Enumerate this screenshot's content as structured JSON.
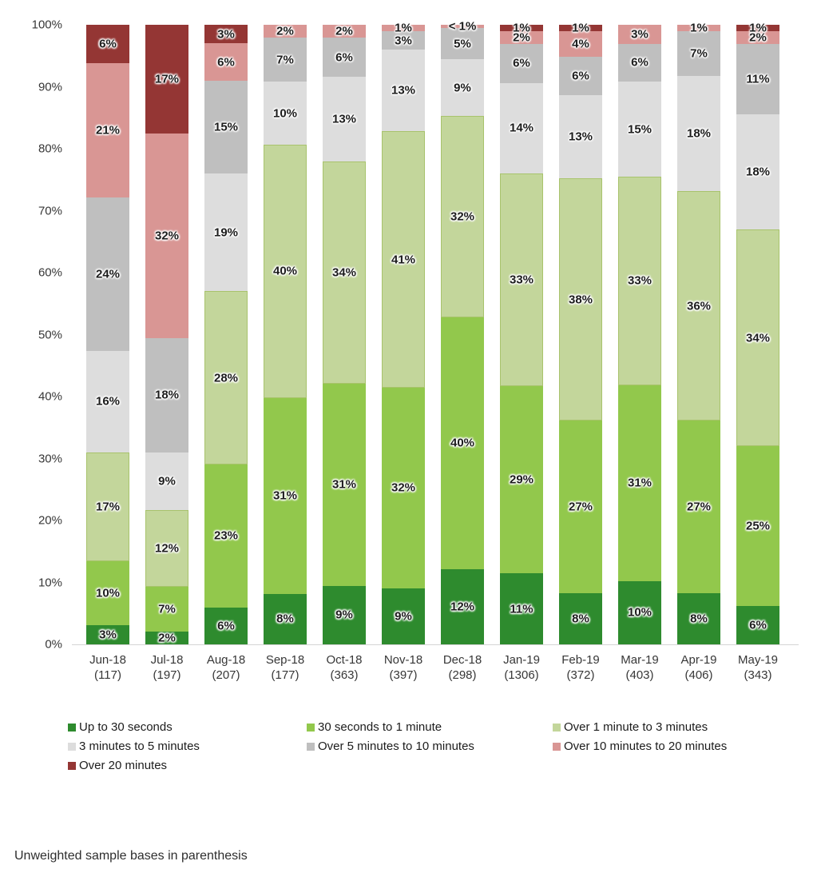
{
  "footnote": "Unweighted sample bases in parenthesis",
  "chart_data": {
    "type": "bar",
    "variant": "100%-stacked-column",
    "title": "",
    "xlabel": "",
    "ylabel": "",
    "grid": false,
    "legend_position": "bottom",
    "y_ticks": [
      "0%",
      "10%",
      "20%",
      "30%",
      "40%",
      "50%",
      "60%",
      "70%",
      "80%",
      "90%",
      "100%"
    ],
    "ylim": [
      0,
      100
    ],
    "categories": [
      {
        "month": "Jun-18",
        "base": "(117)"
      },
      {
        "month": "Jul-18",
        "base": "(197)"
      },
      {
        "month": "Aug-18",
        "base": "(207)"
      },
      {
        "month": "Sep-18",
        "base": "(177)"
      },
      {
        "month": "Oct-18",
        "base": "(363)"
      },
      {
        "month": "Nov-18",
        "base": "(397)"
      },
      {
        "month": "Dec-18",
        "base": "(298)"
      },
      {
        "month": "Jan-19",
        "base": "(1306)"
      },
      {
        "month": "Feb-19",
        "base": "(372)"
      },
      {
        "month": "Mar-19",
        "base": "(403)"
      },
      {
        "month": "Apr-19",
        "base": "(406)"
      },
      {
        "month": "May-19",
        "base": "(343)"
      }
    ],
    "series": [
      {
        "name": "Up to 30 seconds",
        "color": "#2E8B2E",
        "values": [
          3,
          2,
          6,
          8,
          9,
          9,
          12,
          11,
          8,
          10,
          8,
          6
        ],
        "labels": [
          "3%",
          "2%",
          "6%",
          "8%",
          "9%",
          "9%",
          "12%",
          "11%",
          "8%",
          "10%",
          "8%",
          "6%"
        ]
      },
      {
        "name": "30 seconds to 1 minute",
        "color": "#92C84C",
        "values": [
          10,
          7,
          23,
          31,
          31,
          32,
          40,
          29,
          27,
          31,
          27,
          25
        ],
        "labels": [
          "10%",
          "7%",
          "23%",
          "31%",
          "31%",
          "32%",
          "40%",
          "29%",
          "27%",
          "31%",
          "27%",
          "25%"
        ]
      },
      {
        "name": "Over 1 minute to 3 minutes",
        "color": "#C3D69B",
        "border_color": "#A8C36C",
        "values": [
          17,
          12,
          28,
          40,
          34,
          41,
          32,
          33,
          38,
          33,
          36,
          34
        ],
        "labels": [
          "17%",
          "12%",
          "28%",
          "40%",
          "34%",
          "41%",
          "32%",
          "33%",
          "38%",
          "33%",
          "36%",
          "34%"
        ]
      },
      {
        "name": "3 minutes to 5 minutes",
        "color": "#DDDDDD",
        "values": [
          16,
          9,
          19,
          10,
          13,
          13,
          9,
          14,
          13,
          15,
          18,
          18
        ],
        "labels": [
          "16%",
          "9%",
          "19%",
          "10%",
          "13%",
          "13%",
          "9%",
          "14%",
          "13%",
          "15%",
          "18%",
          "18%"
        ]
      },
      {
        "name": "Over 5 minutes to 10 minutes",
        "color": "#BFBFBF",
        "values": [
          24,
          18,
          15,
          7,
          6,
          3,
          5,
          6,
          6,
          6,
          7,
          11
        ],
        "labels": [
          "24%",
          "18%",
          "15%",
          "7%",
          "6%",
          "3%",
          "5%",
          "6%",
          "6%",
          "6%",
          "7%",
          "11%"
        ]
      },
      {
        "name": "Over 10 minutes to 20 minutes",
        "color": "#D99694",
        "values": [
          21,
          32,
          6,
          2,
          2,
          1,
          0.5,
          2,
          4,
          3,
          1,
          2
        ],
        "labels": [
          "21%",
          "32%",
          "6%",
          "2%",
          "2%",
          "1%",
          "< 1%",
          "2%",
          "4%",
          "3%",
          "1%",
          "2%"
        ]
      },
      {
        "name": "Over 20 minutes",
        "color": "#943634",
        "values": [
          6,
          17,
          3,
          0,
          0,
          0,
          0,
          1,
          1,
          0,
          0,
          1
        ],
        "labels": [
          "6%",
          "17%",
          "3%",
          "",
          "",
          "",
          "",
          "1%",
          "1%",
          "",
          "",
          "1%"
        ]
      }
    ]
  }
}
